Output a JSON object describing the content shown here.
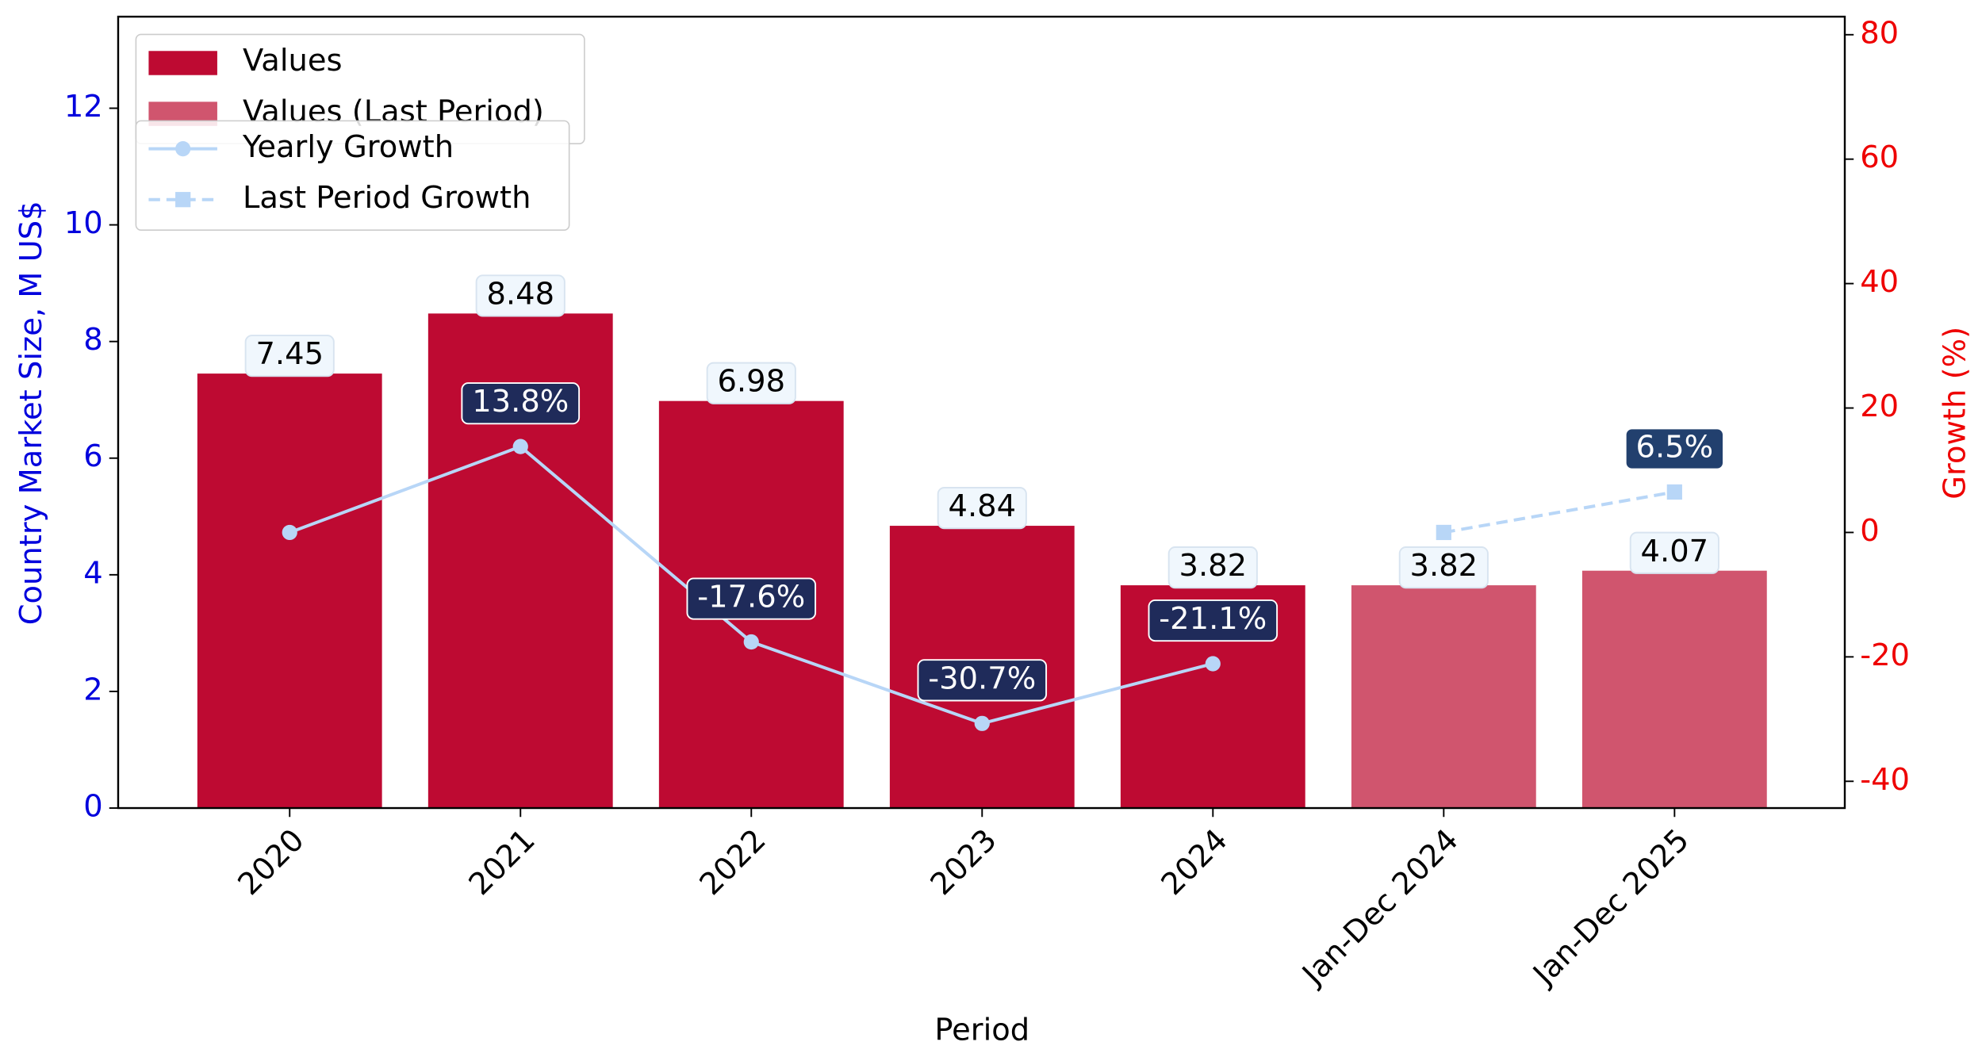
{
  "chart_data": {
    "type": "bar",
    "categories": [
      "2020",
      "2021",
      "2022",
      "2023",
      "2024",
      "Jan-Dec 2024",
      "Jan-Dec 2025"
    ],
    "xlabel": "Period",
    "ylabel": "Country Market Size, M US$",
    "y2label": "Growth (%)",
    "ylim": [
      0,
      13.57
    ],
    "yticks": [
      0,
      2,
      4,
      6,
      8,
      10,
      12
    ],
    "y2lim": [
      -44.3,
      82.9
    ],
    "y2ticks": [
      -40,
      -20,
      0,
      20,
      40,
      60,
      80
    ],
    "series": [
      {
        "name": "Values",
        "type": "bar",
        "color": "#be0a32",
        "values": [
          7.45,
          8.48,
          6.98,
          4.84,
          3.82,
          null,
          null
        ]
      },
      {
        "name": "Values (Last Period)",
        "type": "bar",
        "color": "#d0556e",
        "values": [
          null,
          null,
          null,
          null,
          null,
          3.82,
          4.07
        ]
      },
      {
        "name": "Yearly Growth",
        "type": "line",
        "axis": "y2",
        "color": "#b8d6f7",
        "dash": "solid",
        "marker": "circle",
        "label_color": "#1f2b5a",
        "values": [
          0,
          13.8,
          -17.6,
          -30.7,
          -21.1,
          null,
          null
        ],
        "value_labels": [
          null,
          "13.8%",
          "-17.6%",
          "-30.7%",
          "-21.1%",
          null,
          null
        ]
      },
      {
        "name": "Last Period Growth",
        "type": "line",
        "axis": "y2",
        "color": "#b8d6f7",
        "dash": "dashed",
        "marker": "square",
        "label_color": "#22406e",
        "values": [
          null,
          null,
          null,
          null,
          null,
          0,
          6.5
        ],
        "value_labels": [
          null,
          null,
          null,
          null,
          null,
          null,
          "6.5%"
        ]
      }
    ]
  }
}
